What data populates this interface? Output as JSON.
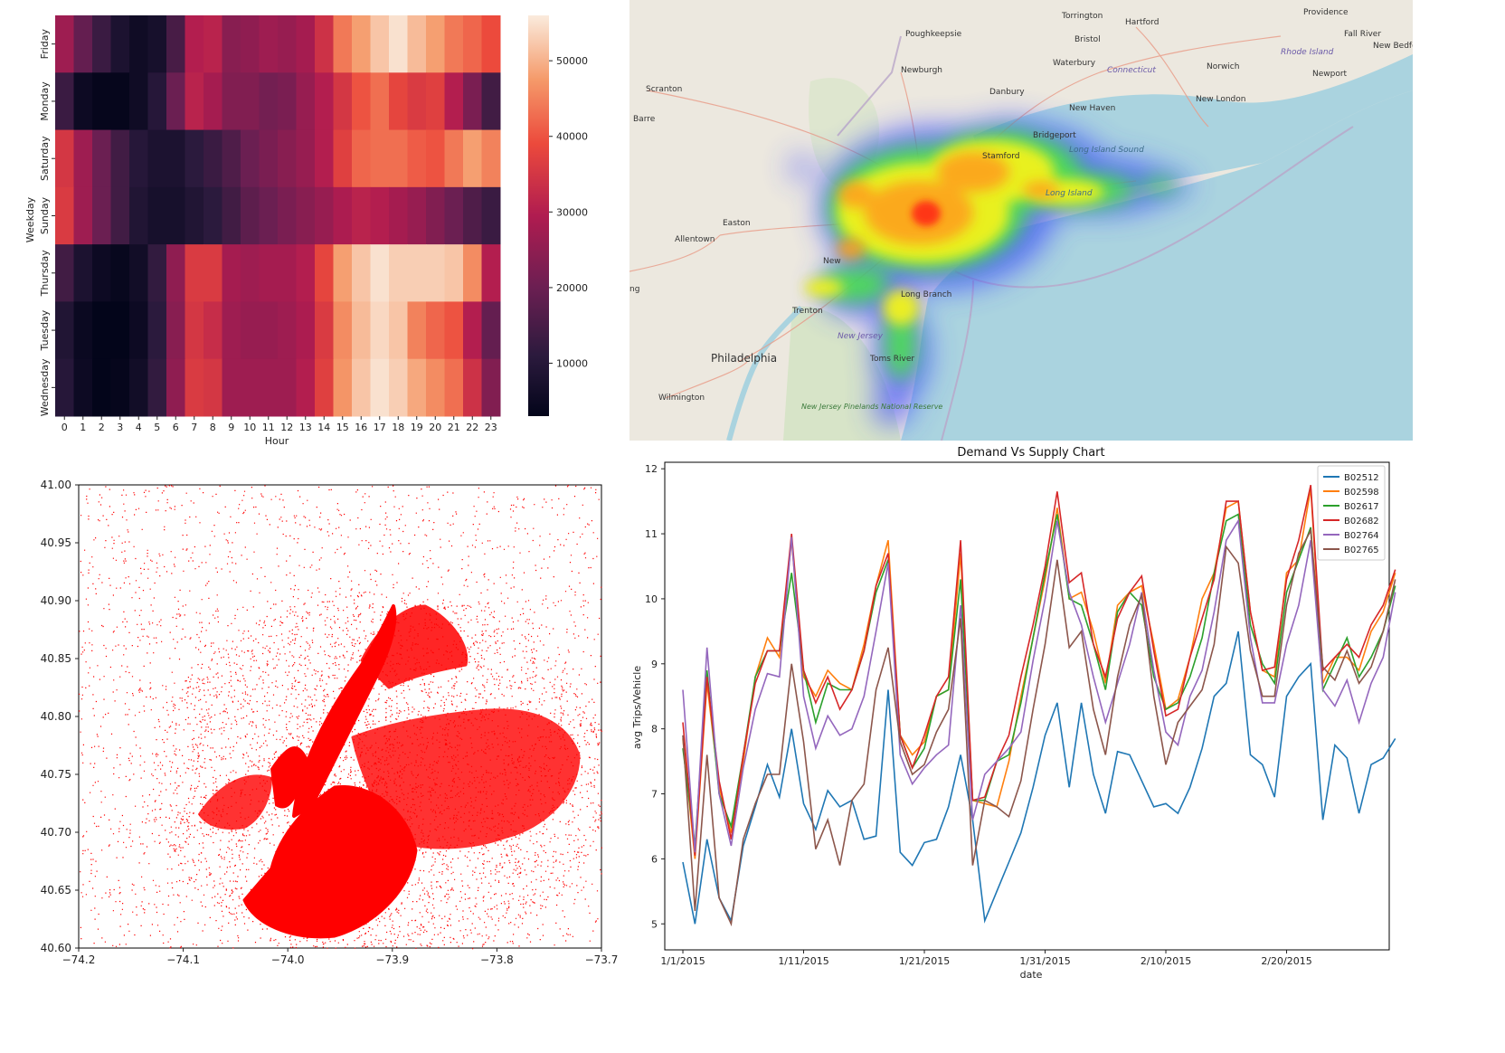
{
  "chart_data": [
    {
      "type": "heatmap",
      "id": "weekday-hour-heatmap",
      "xlabel": "Hour",
      "ylabel": "Weekday",
      "x_ticks": [
        "0",
        "1",
        "2",
        "3",
        "4",
        "5",
        "6",
        "7",
        "8",
        "9",
        "10",
        "11",
        "12",
        "13",
        "14",
        "15",
        "16",
        "17",
        "18",
        "19",
        "20",
        "21",
        "22",
        "23"
      ],
      "y_ticks": [
        "Friday",
        "Monday",
        "Saturday",
        "Sunday",
        "Thursday",
        "Tuesday",
        "Wednesday"
      ],
      "colorbar_ticks": [
        "10000",
        "20000",
        "30000",
        "40000",
        "50000"
      ],
      "colorbar_values": [
        10000,
        20000,
        30000,
        40000,
        50000
      ],
      "vmin": 3000,
      "vmax": 56000,
      "values": [
        [
          27000,
          19000,
          13000,
          8000,
          5500,
          7000,
          15000,
          30000,
          31000,
          24000,
          25000,
          27000,
          26000,
          28000,
          34000,
          44000,
          48000,
          52000,
          55000,
          51000,
          48000,
          44000,
          42000,
          39000
        ],
        [
          13000,
          5000,
          3500,
          3500,
          5500,
          10000,
          20000,
          31000,
          28000,
          23000,
          23000,
          21000,
          22000,
          26000,
          30000,
          35000,
          40000,
          43000,
          38000,
          36000,
          37000,
          30000,
          22000,
          14000
        ],
        [
          35000,
          27000,
          20000,
          14000,
          10000,
          8000,
          8000,
          11000,
          13000,
          16000,
          20000,
          22000,
          24000,
          26000,
          30000,
          37000,
          42000,
          43000,
          43000,
          41000,
          40000,
          44000,
          48000,
          45000
        ],
        [
          36000,
          27000,
          20000,
          14000,
          9000,
          7000,
          7000,
          9000,
          11000,
          14000,
          18000,
          20000,
          22000,
          24000,
          26000,
          29000,
          31000,
          30000,
          28000,
          26000,
          23000,
          20000,
          16000,
          13000
        ],
        [
          14000,
          8000,
          5000,
          4000,
          6000,
          12000,
          25000,
          36000,
          36000,
          28000,
          27000,
          28000,
          28000,
          30000,
          38000,
          48000,
          52000,
          55000,
          53000,
          53000,
          53000,
          52000,
          46000,
          30000
        ],
        [
          9000,
          4500,
          3000,
          3000,
          5000,
          11000,
          24000,
          35000,
          33000,
          27000,
          26000,
          26000,
          27000,
          29000,
          36000,
          46000,
          51000,
          54000,
          52000,
          45000,
          42000,
          40000,
          30000,
          19000
        ],
        [
          10000,
          5000,
          3000,
          3500,
          6000,
          12000,
          25000,
          36000,
          35000,
          27000,
          27000,
          27000,
          27000,
          30000,
          37000,
          47000,
          52000,
          55000,
          53000,
          49000,
          46000,
          43000,
          34000,
          23000
        ]
      ]
    },
    {
      "type": "scatter",
      "id": "pickup-scatter",
      "x_ticks": [
        "−74.2",
        "−74.1",
        "−74.0",
        "−73.9",
        "−73.8",
        "−73.7"
      ],
      "y_ticks": [
        "40.60",
        "40.65",
        "40.70",
        "40.75",
        "40.80",
        "40.85",
        "40.90",
        "40.95",
        "41.00"
      ],
      "xlim": [
        -74.2,
        -73.7
      ],
      "ylim": [
        40.6,
        41.0
      ],
      "color": "#ff0000"
    },
    {
      "type": "line",
      "id": "demand-vs-supply",
      "title": "Demand Vs Supply Chart",
      "xlabel": "date",
      "ylabel": "avg Trips/Vehicle",
      "x_ticks": [
        "1/1/2015",
        "1/11/2015",
        "1/21/2015",
        "1/31/2015",
        "2/10/2015",
        "2/20/2015"
      ],
      "x_tick_index": [
        0,
        10,
        20,
        30,
        40,
        50
      ],
      "y_ticks": [
        "5",
        "6",
        "7",
        "8",
        "9",
        "10",
        "11",
        "12"
      ],
      "ylim": [
        4.6,
        12.1
      ],
      "xlim": [
        -1.5,
        58.5
      ],
      "grid": false,
      "legend_position": "top-right",
      "series": [
        {
          "name": "B02512",
          "color": "#1f77b4",
          "values": [
            5.95,
            5.0,
            6.3,
            5.4,
            5.05,
            6.2,
            6.8,
            7.45,
            6.95,
            8.0,
            6.85,
            6.45,
            7.05,
            6.8,
            6.9,
            6.3,
            6.35,
            8.6,
            6.1,
            5.9,
            6.25,
            6.3,
            6.8,
            7.6,
            6.6,
            5.05,
            5.5,
            5.95,
            6.4,
            7.1,
            7.9,
            8.4,
            7.1,
            8.4,
            7.3,
            6.7,
            7.65,
            7.6,
            7.2,
            6.8,
            6.85,
            6.7,
            7.1,
            7.7,
            8.5,
            8.7,
            9.5,
            7.6,
            7.45,
            6.95,
            8.5,
            8.8,
            9.0,
            6.6,
            7.75,
            7.55,
            6.7,
            7.45,
            7.55,
            7.85
          ]
        },
        {
          "name": "B02598",
          "color": "#ff7f0e",
          "values": [
            7.85,
            6.0,
            8.7,
            7.1,
            6.4,
            7.5,
            8.8,
            9.4,
            9.1,
            10.9,
            8.8,
            8.5,
            8.9,
            8.7,
            8.6,
            9.3,
            10.2,
            10.9,
            7.9,
            7.6,
            7.8,
            8.5,
            8.6,
            10.7,
            6.9,
            6.85,
            6.8,
            7.5,
            8.5,
            9.4,
            10.3,
            11.4,
            10.0,
            10.1,
            9.5,
            8.7,
            9.9,
            10.1,
            10.2,
            9.3,
            8.3,
            8.45,
            9.1,
            10.0,
            10.4,
            11.4,
            11.5,
            9.8,
            8.9,
            8.8,
            10.4,
            10.6,
            11.7,
            8.7,
            9.1,
            9.1,
            8.9,
            9.5,
            9.8,
            10.4
          ]
        },
        {
          "name": "B02617",
          "color": "#2ca02c",
          "values": [
            7.7,
            6.2,
            8.9,
            7.0,
            6.5,
            7.6,
            8.8,
            9.2,
            9.2,
            10.4,
            8.9,
            8.1,
            8.7,
            8.6,
            8.6,
            9.2,
            10.1,
            10.6,
            7.9,
            7.4,
            7.7,
            8.5,
            8.6,
            10.3,
            6.9,
            6.9,
            7.5,
            7.6,
            8.4,
            9.4,
            10.4,
            11.3,
            10.0,
            9.9,
            9.3,
            8.6,
            9.8,
            10.1,
            9.9,
            8.8,
            8.3,
            8.4,
            8.8,
            9.4,
            10.4,
            11.2,
            11.3,
            9.6,
            9.0,
            8.7,
            10.1,
            10.6,
            11.1,
            8.6,
            9.0,
            9.4,
            8.8,
            9.1,
            9.5,
            10.2
          ]
        },
        {
          "name": "B02682",
          "color": "#d62728",
          "values": [
            8.1,
            6.05,
            8.8,
            7.2,
            6.3,
            7.6,
            8.7,
            9.2,
            9.2,
            11.0,
            8.9,
            8.4,
            8.8,
            8.3,
            8.6,
            9.2,
            10.2,
            10.7,
            7.9,
            7.4,
            7.9,
            8.5,
            8.8,
            10.9,
            6.9,
            6.95,
            7.5,
            7.9,
            8.8,
            9.6,
            10.5,
            11.65,
            10.25,
            10.4,
            9.3,
            8.8,
            9.7,
            10.1,
            10.35,
            9.2,
            8.2,
            8.3,
            9.1,
            9.7,
            10.3,
            11.5,
            11.5,
            9.8,
            8.9,
            8.95,
            10.3,
            10.9,
            11.75,
            8.9,
            9.1,
            9.3,
            9.1,
            9.6,
            9.9,
            10.45
          ]
        },
        {
          "name": "B02764",
          "color": "#9467bd",
          "values": [
            8.6,
            6.1,
            9.25,
            7.0,
            6.2,
            7.4,
            8.3,
            8.85,
            8.8,
            10.95,
            8.5,
            7.7,
            8.2,
            7.9,
            8.0,
            8.5,
            9.5,
            10.55,
            7.6,
            7.15,
            7.4,
            7.6,
            7.75,
            9.9,
            6.6,
            7.3,
            7.5,
            7.7,
            7.95,
            9.05,
            10.0,
            11.2,
            10.1,
            9.6,
            8.8,
            8.1,
            8.7,
            9.3,
            10.1,
            8.9,
            7.95,
            7.75,
            8.5,
            8.9,
            9.8,
            10.9,
            11.2,
            9.4,
            8.4,
            8.4,
            9.3,
            9.9,
            10.9,
            8.6,
            8.35,
            8.75,
            8.1,
            8.7,
            9.1,
            10.1
          ]
        },
        {
          "name": "B02765",
          "color": "#8c564b",
          "values": [
            7.9,
            5.2,
            7.6,
            5.4,
            5.0,
            6.3,
            6.85,
            7.3,
            7.3,
            9.0,
            7.8,
            6.15,
            6.6,
            5.9,
            6.9,
            7.15,
            8.6,
            9.25,
            7.8,
            7.3,
            7.45,
            7.95,
            8.3,
            9.7,
            5.9,
            6.9,
            6.8,
            6.65,
            7.2,
            8.3,
            9.3,
            10.6,
            9.25,
            9.5,
            8.3,
            7.6,
            8.8,
            9.6,
            10.05,
            8.5,
            7.45,
            8.1,
            8.35,
            8.6,
            9.3,
            10.8,
            10.55,
            9.2,
            8.5,
            8.5,
            9.9,
            10.7,
            11.05,
            8.95,
            8.75,
            9.2,
            8.7,
            8.95,
            9.5,
            10.3
          ]
        }
      ]
    }
  ],
  "map": {
    "places": {
      "torrington": "Torrington",
      "hartford": "Hartford",
      "providence": "Providence",
      "poughkeepsie": "Poughkeepsie",
      "bristol": "Bristol",
      "fall_river": "Fall River",
      "new_bedford": "New Bedford",
      "waterbury": "Waterbury",
      "newburgh": "Newburgh",
      "connecticut": "Connecticut",
      "norwich": "Norwich",
      "rhode_island": "Rhode Island",
      "scranton": "Scranton",
      "danbury": "Danbury",
      "newport": "Newport",
      "new_london": "New London",
      "barre": "Barre",
      "new_haven": "New Haven",
      "bridgeport": "Bridgeport",
      "long_island_sound": "Long Island Sound",
      "stamford": "Stamford",
      "long_island": "Long Island",
      "easton": "Easton",
      "allentown": "Allentown",
      "new": "New",
      "long_branch": "Long Branch",
      "trenton": "Trenton",
      "ng": "ng",
      "new_jersey": "New Jersey",
      "philadelphia": "Philadelphia",
      "toms_river": "Toms River",
      "wilmington": "Wilmington",
      "pinelands": "New Jersey Pinelands National Reserve"
    }
  }
}
